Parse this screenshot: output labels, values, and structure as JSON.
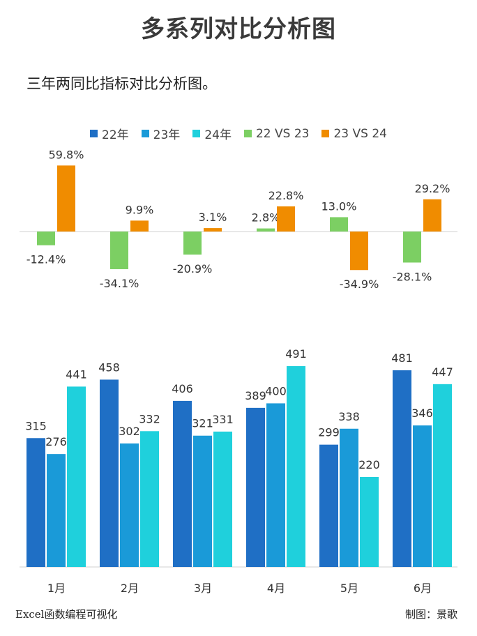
{
  "title": "多系列对比分析图",
  "subtitle": "三年两同比指标对比分析图。",
  "footer": {
    "left": "Excel函数编程可视化",
    "right": "制图：景歌"
  },
  "colors": {
    "y22": "#1f6fc5",
    "y23": "#1a9ad8",
    "y24": "#1fd0dc",
    "vs2223": "#7ccf63",
    "vs2324": "#f08c00"
  },
  "chart_data": [
    {
      "type": "bar",
      "categories": [
        "1月",
        "2月",
        "3月",
        "4月",
        "5月",
        "6月"
      ],
      "series": [
        {
          "name": "22 VS 23",
          "values": [
            -12.4,
            -34.1,
            -20.9,
            2.8,
            13.0,
            -28.1
          ],
          "labels": [
            "-12.4%",
            "-34.1%",
            "-20.9%",
            "2.8%",
            "13.0%",
            "-28.1%"
          ]
        },
        {
          "name": "23 VS 24",
          "values": [
            59.8,
            9.9,
            3.1,
            22.8,
            -34.9,
            29.2
          ],
          "labels": [
            "59.8%",
            "9.9%",
            "3.1%",
            "22.8%",
            "-34.9%",
            "29.2%"
          ]
        }
      ],
      "unit": "%",
      "grid": false
    },
    {
      "type": "bar",
      "categories": [
        "1月",
        "2月",
        "3月",
        "4月",
        "5月",
        "6月"
      ],
      "series": [
        {
          "name": "22年",
          "values": [
            315,
            458,
            406,
            389,
            299,
            481
          ]
        },
        {
          "name": "23年",
          "values": [
            276,
            302,
            321,
            400,
            338,
            346
          ]
        },
        {
          "name": "24年",
          "values": [
            441,
            332,
            331,
            491,
            220,
            447
          ]
        }
      ],
      "ylim": [
        0,
        500
      ],
      "grid": false
    }
  ]
}
